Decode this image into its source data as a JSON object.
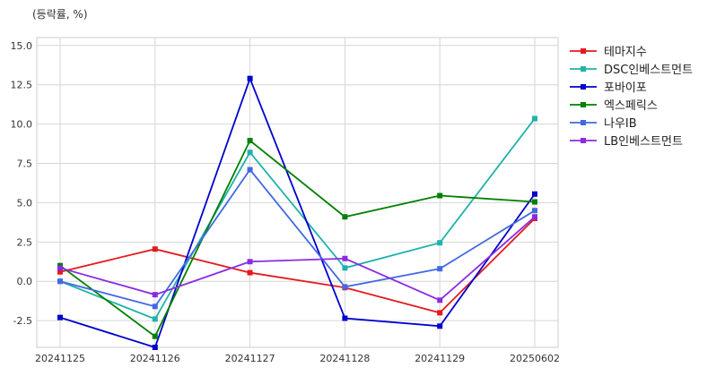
{
  "chart_data": {
    "type": "line",
    "unit_label": "(등락률, %)",
    "categories": [
      "20241125",
      "20241126",
      "20241127",
      "20241128",
      "20241129",
      "20250602"
    ],
    "ylim": [
      -4.2,
      15.5
    ],
    "yticks": [
      -2.5,
      0.0,
      2.5,
      5.0,
      7.5,
      10.0,
      12.5,
      15.0
    ],
    "ytick_labels": [
      "-2.5",
      "0.0",
      "2.5",
      "5.0",
      "7.5",
      "10.0",
      "12.5",
      "15.0"
    ],
    "grid": true,
    "legend_position": "right",
    "series": [
      {
        "name": "테마지수",
        "color": "#e41a1c",
        "values": [
          0.6,
          2.05,
          0.55,
          -0.4,
          -2.0,
          4.0
        ]
      },
      {
        "name": "DSC인베스트먼트",
        "color": "#20b2aa",
        "values": [
          0.0,
          -2.4,
          8.2,
          0.85,
          2.45,
          10.35
        ]
      },
      {
        "name": "포바이포",
        "color": "#0000cd",
        "values": [
          -2.3,
          -4.2,
          12.9,
          -2.35,
          -2.85,
          5.55
        ]
      },
      {
        "name": "엑스페릭스",
        "color": "#008000",
        "values": [
          1.0,
          -3.5,
          8.95,
          4.1,
          5.45,
          5.05
        ]
      },
      {
        "name": "나우IB",
        "color": "#4169e1",
        "values": [
          0.0,
          -1.6,
          7.1,
          -0.35,
          0.8,
          4.5
        ]
      },
      {
        "name": "LB인베스트먼트",
        "color": "#8a2be2",
        "values": [
          0.85,
          -0.85,
          1.25,
          1.45,
          -1.2,
          4.1
        ]
      }
    ]
  }
}
